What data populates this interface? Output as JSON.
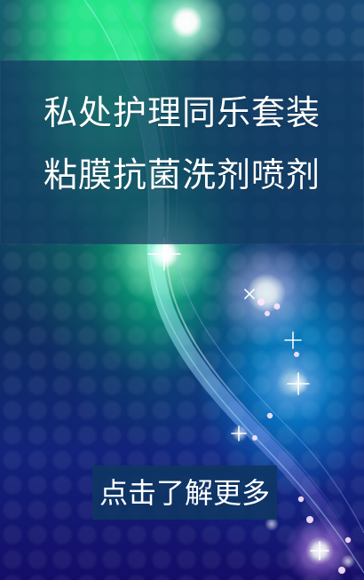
{
  "ad": {
    "headline_line_1": "私处护理同乐套装",
    "headline_line_2": "粘膜抗菌洗剂喷剂",
    "cta_label": "点击了解更多"
  },
  "colors": {
    "header_band": "#123a62",
    "cta_button": "#0e3762",
    "text": "#ffffff",
    "background_top": "#184a78",
    "background_bottom": "#140d68"
  },
  "icons": {
    "decorative_background": "sparkle-wave-background"
  }
}
